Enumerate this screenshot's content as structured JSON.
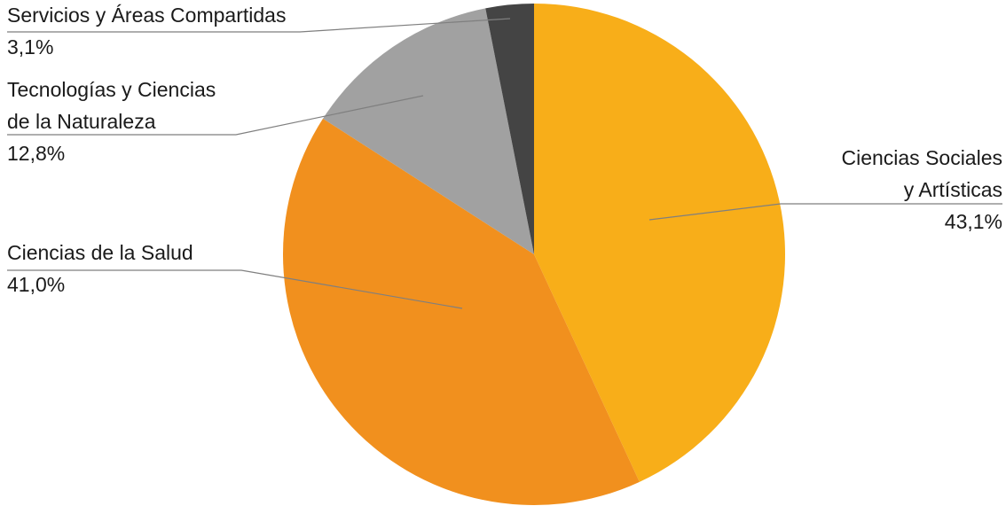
{
  "chart_data": {
    "type": "pie",
    "title": "",
    "slices": [
      {
        "name": "Ciencias Sociales y Artísticas",
        "name_lines": [
          "Ciencias Sociales",
          "y Artísticas"
        ],
        "value": 43.1,
        "label": "43,1%",
        "color": "#F8AE19"
      },
      {
        "name": "Ciencias de la Salud",
        "name_lines": [
          "Ciencias de la Salud"
        ],
        "value": 41.0,
        "label": "41,0%",
        "color": "#F1901E"
      },
      {
        "name": "Tecnologías y Ciencias de la Naturaleza",
        "name_lines": [
          "Tecnologías y Ciencias",
          "de la Naturaleza"
        ],
        "value": 12.8,
        "label": "12,8%",
        "color": "#A1A1A1"
      },
      {
        "name": "Servicios y Áreas Compartidas",
        "name_lines": [
          "Servicios y Áreas Compartidas"
        ],
        "value": 3.1,
        "label": "3,1%",
        "color": "#444444"
      }
    ],
    "start_angle_deg": 0,
    "direction": "clockwise",
    "legend": "none",
    "data_labels": "outside with leader lines"
  }
}
